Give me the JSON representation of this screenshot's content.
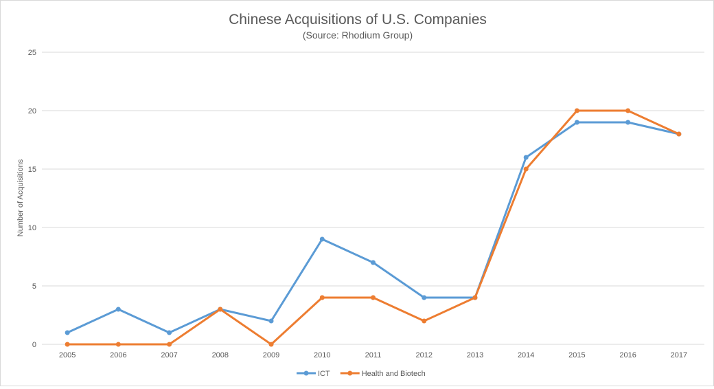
{
  "chart_data": {
    "type": "line",
    "title": "Chinese Acquisitions of U.S. Companies",
    "subtitle": "(Source: Rhodium Group)",
    "xlabel": "",
    "ylabel": "Number of Acquisitions",
    "ylim": [
      0,
      25
    ],
    "yticks": [
      0,
      5,
      10,
      15,
      20,
      25
    ],
    "grid": true,
    "legend_position": "bottom",
    "categories": [
      "2005",
      "2006",
      "2007",
      "2008",
      "2009",
      "2010",
      "2011",
      "2012",
      "2013",
      "2014",
      "2015",
      "2016",
      "2017"
    ],
    "series": [
      {
        "name": "ICT",
        "color": "#5B9BD5",
        "values": [
          1,
          3,
          1,
          3,
          2,
          9,
          7,
          4,
          4,
          16,
          19,
          19,
          18
        ]
      },
      {
        "name": "Health and Biotech",
        "color": "#ED7D31",
        "values": [
          0,
          0,
          0,
          3,
          0,
          4,
          4,
          2,
          4,
          15,
          20,
          20,
          18
        ]
      }
    ]
  }
}
